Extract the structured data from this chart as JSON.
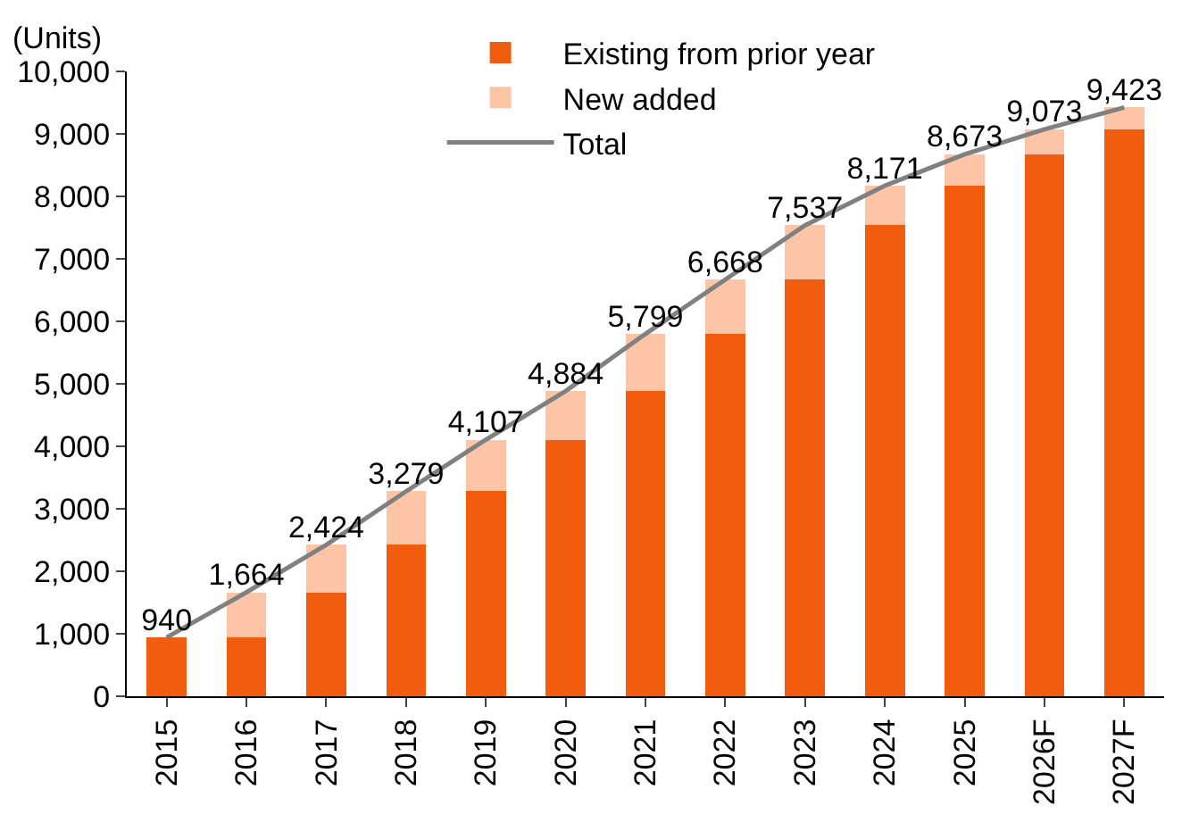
{
  "chart_data": {
    "type": "bar",
    "stacked": true,
    "ylabel": "(Units)",
    "legend": "top left",
    "categories": [
      "2015",
      "2016",
      "2017",
      "2018",
      "2019",
      "2020",
      "2021",
      "2022",
      "2023",
      "2024",
      "2025",
      "2026F",
      "2027F"
    ],
    "ylim": [
      0,
      10000
    ],
    "yticks": [
      {
        "value": 0,
        "label": "0"
      },
      {
        "value": 1000,
        "label": "1,000"
      },
      {
        "value": 2000,
        "label": "2,000"
      },
      {
        "value": 3000,
        "label": "3,000"
      },
      {
        "value": 4000,
        "label": "4,000"
      },
      {
        "value": 5000,
        "label": "5,000"
      },
      {
        "value": 6000,
        "label": "6,000"
      },
      {
        "value": 7000,
        "label": "7,000"
      },
      {
        "value": 8000,
        "label": "8,000"
      },
      {
        "value": 9000,
        "label": "9,000"
      },
      {
        "value": 10000,
        "label": "10,000"
      }
    ],
    "series": [
      {
        "name": "Existing from prior year",
        "color": "#f25c0f",
        "values": [
          940,
          940,
          1664,
          2424,
          3279,
          4107,
          4884,
          5799,
          6668,
          7537,
          8171,
          8673,
          9073
        ]
      },
      {
        "name": "New added",
        "color": "#fdc4a6",
        "values": [
          0,
          724,
          760,
          855,
          828,
          777,
          915,
          869,
          869,
          634,
          502,
          400,
          350
        ]
      },
      {
        "name": "Total",
        "type": "line",
        "color": "#808080",
        "values": [
          940,
          1664,
          2424,
          3279,
          4107,
          4884,
          5799,
          6668,
          7537,
          8171,
          8673,
          9073,
          9423
        ],
        "value_labels": [
          "940",
          "1,664",
          "2,424",
          "3,279",
          "4,107",
          "4,884",
          "5,799",
          "6,668",
          "7,537",
          "8,171",
          "8,673",
          "9,073",
          "9,423"
        ]
      }
    ]
  }
}
